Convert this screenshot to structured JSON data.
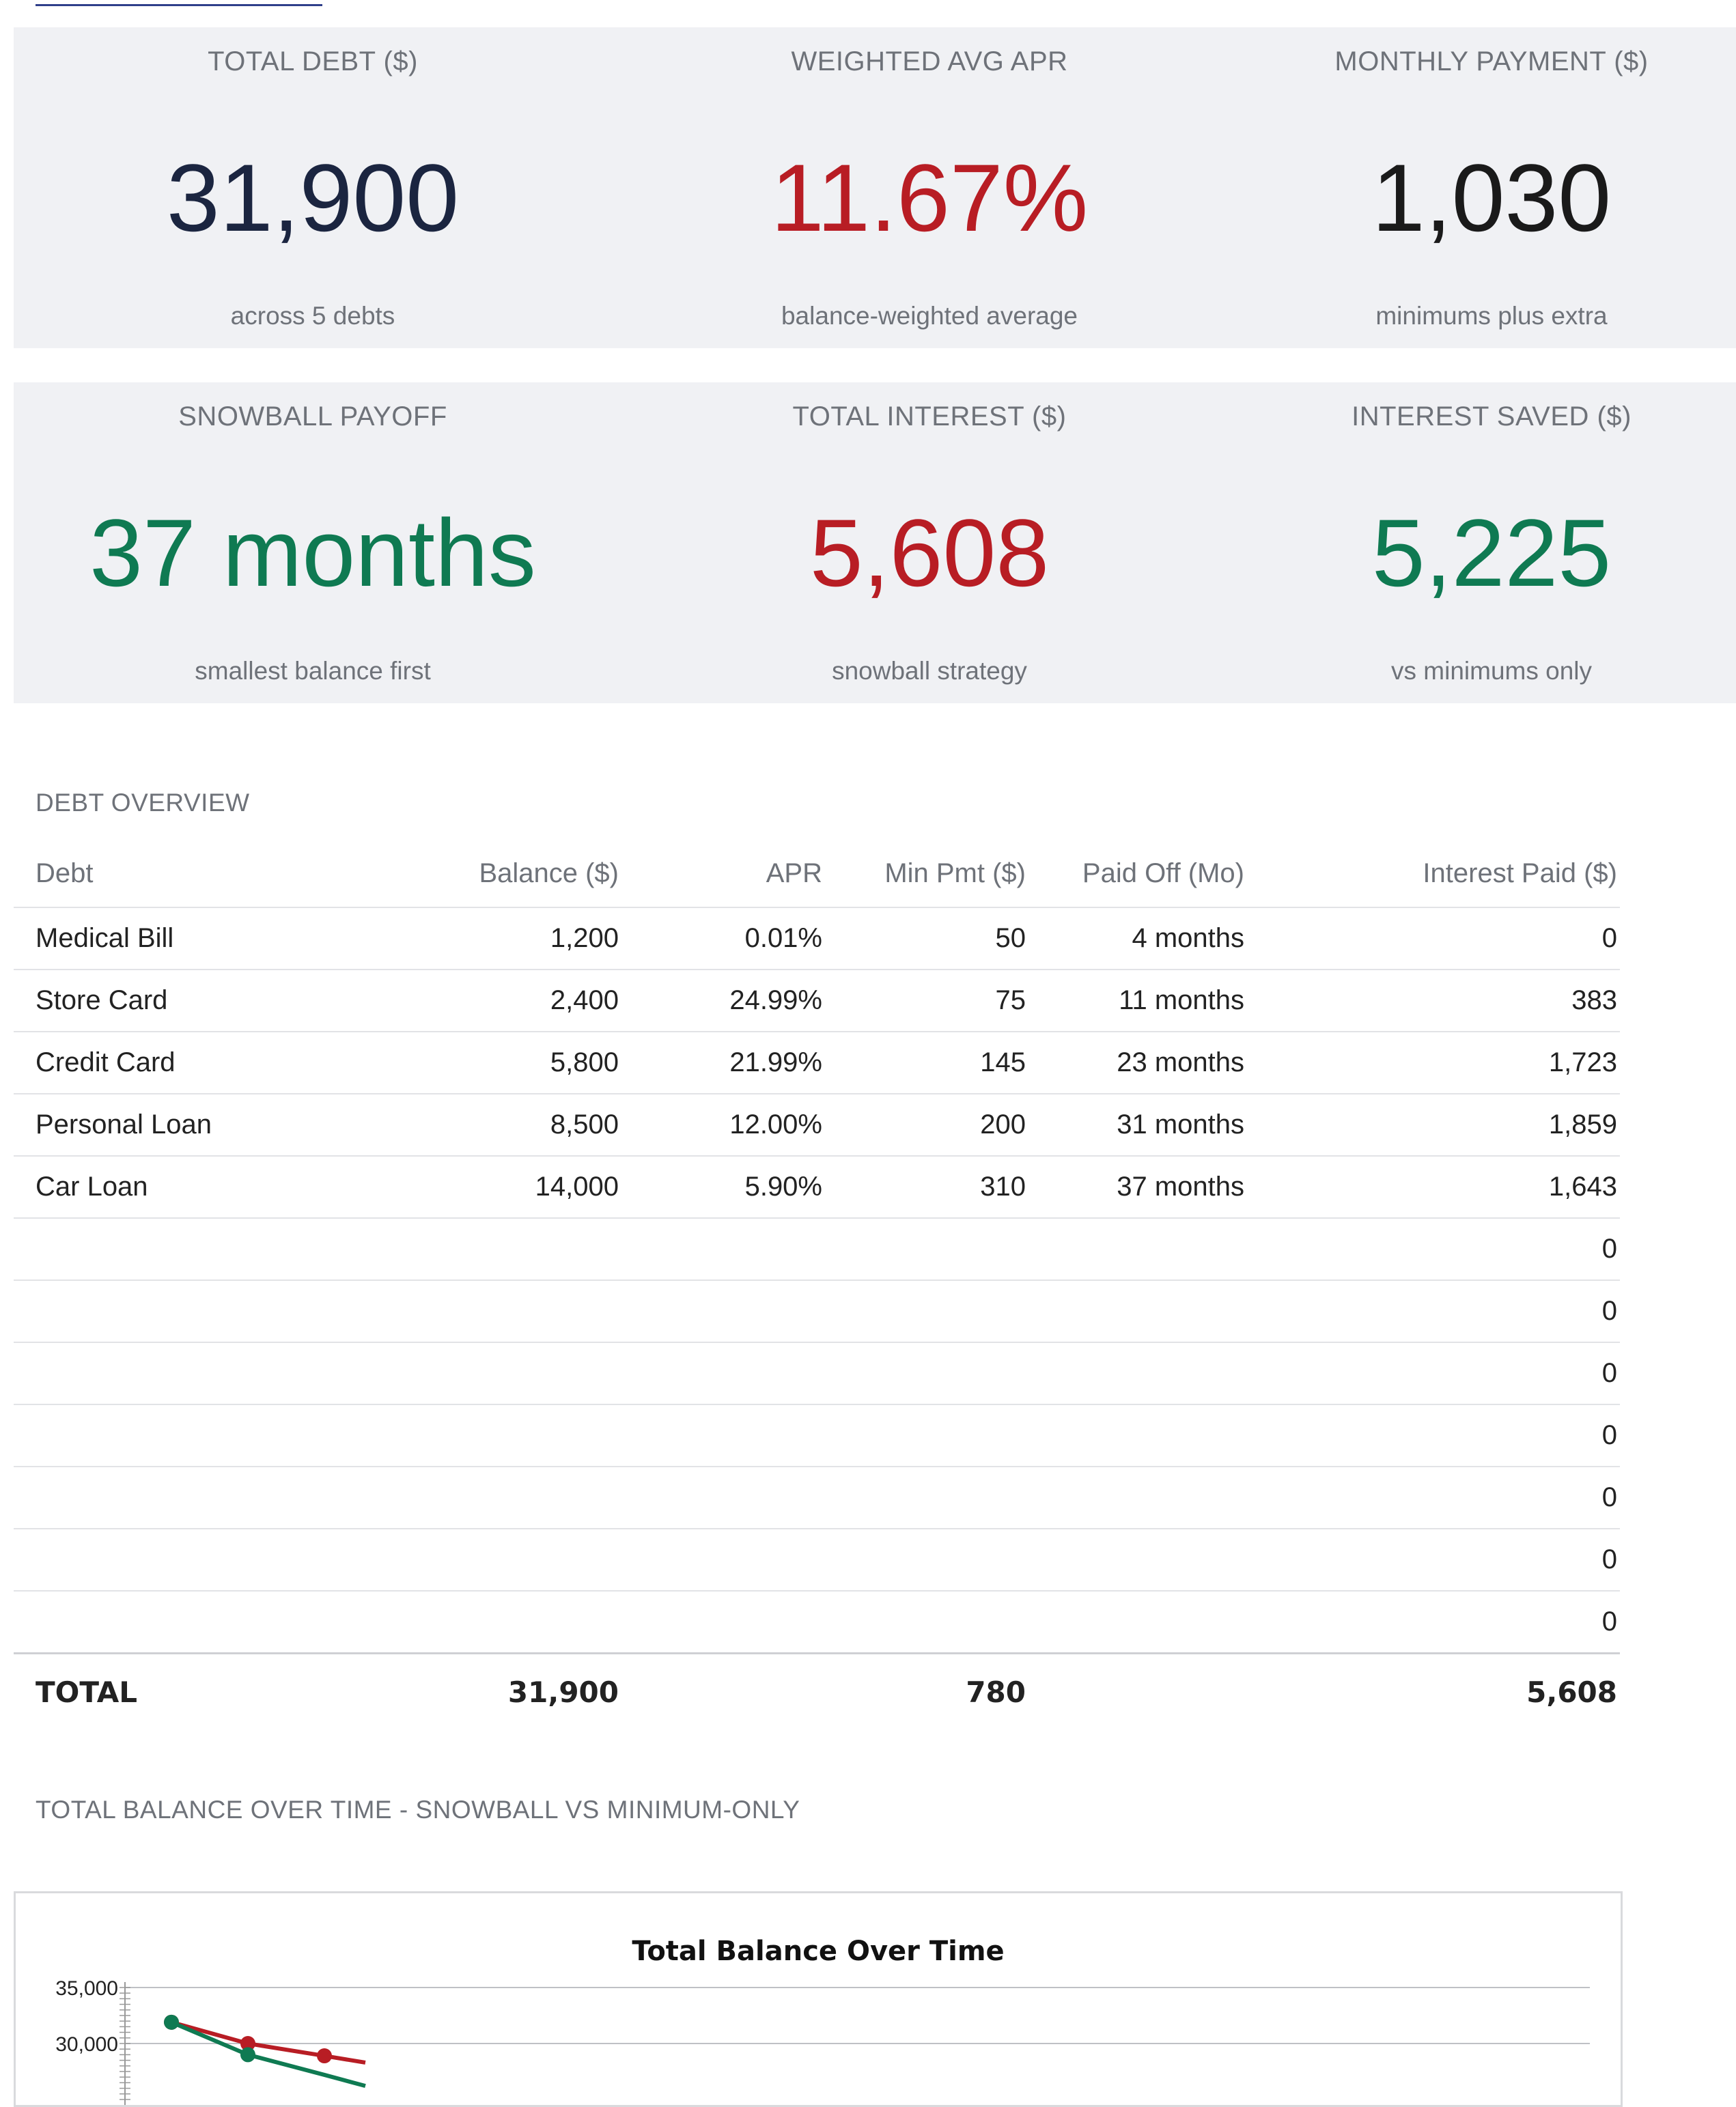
{
  "kpis": {
    "total_debt": {
      "label": "TOTAL DEBT ($)",
      "value": "31,900",
      "sub": "across 5 debts",
      "color": "#1b2540"
    },
    "weighted_apr": {
      "label": "WEIGHTED AVG APR",
      "value": "11.67%",
      "sub": "balance-weighted average",
      "color": "#b81d24"
    },
    "monthly_payment": {
      "label": "MONTHLY PAYMENT ($)",
      "value": "1,030",
      "sub": "minimums plus extra",
      "color": "#1a1a1a"
    },
    "snowball_payoff": {
      "label": "SNOWBALL PAYOFF",
      "value": "37 months",
      "sub": "smallest balance first",
      "color": "#0f7a52"
    },
    "total_interest": {
      "label": "TOTAL INTEREST ($)",
      "value": "5,608",
      "sub": "snowball strategy",
      "color": "#b81d24"
    },
    "interest_saved": {
      "label": "INTEREST SAVED ($)",
      "value": "5,225",
      "sub": "vs minimums only",
      "color": "#0f7a52"
    }
  },
  "debt_overview": {
    "title": "DEBT OVERVIEW",
    "headers": {
      "debt": "Debt",
      "balance": "Balance ($)",
      "apr": "APR",
      "min_pmt": "Min Pmt ($)",
      "paid_off": "Paid Off (Mo)",
      "interest": "Interest Paid ($)"
    },
    "rows": [
      {
        "debt": "Medical Bill",
        "balance": "1,200",
        "apr": "0.01%",
        "min_pmt": "50",
        "paid_off": "4 months",
        "interest": "0"
      },
      {
        "debt": "Store Card",
        "balance": "2,400",
        "apr": "24.99%",
        "min_pmt": "75",
        "paid_off": "11 months",
        "interest": "383"
      },
      {
        "debt": "Credit Card",
        "balance": "5,800",
        "apr": "21.99%",
        "min_pmt": "145",
        "paid_off": "23 months",
        "interest": "1,723"
      },
      {
        "debt": "Personal Loan",
        "balance": "8,500",
        "apr": "12.00%",
        "min_pmt": "200",
        "paid_off": "31 months",
        "interest": "1,859"
      },
      {
        "debt": "Car Loan",
        "balance": "14,000",
        "apr": "5.90%",
        "min_pmt": "310",
        "paid_off": "37 months",
        "interest": "1,643"
      },
      {
        "debt": "",
        "balance": "",
        "apr": "",
        "min_pmt": "",
        "paid_off": "",
        "interest": "0"
      },
      {
        "debt": "",
        "balance": "",
        "apr": "",
        "min_pmt": "",
        "paid_off": "",
        "interest": "0"
      },
      {
        "debt": "",
        "balance": "",
        "apr": "",
        "min_pmt": "",
        "paid_off": "",
        "interest": "0"
      },
      {
        "debt": "",
        "balance": "",
        "apr": "",
        "min_pmt": "",
        "paid_off": "",
        "interest": "0"
      },
      {
        "debt": "",
        "balance": "",
        "apr": "",
        "min_pmt": "",
        "paid_off": "",
        "interest": "0"
      },
      {
        "debt": "",
        "balance": "",
        "apr": "",
        "min_pmt": "",
        "paid_off": "",
        "interest": "0"
      },
      {
        "debt": "",
        "balance": "",
        "apr": "",
        "min_pmt": "",
        "paid_off": "",
        "interest": "0"
      }
    ],
    "total": {
      "label": "TOTAL",
      "balance": "31,900",
      "min_pmt": "780",
      "interest": "5,608"
    }
  },
  "balance_section": {
    "title": "TOTAL BALANCE OVER TIME - SNOWBALL VS MINIMUM-ONLY"
  },
  "chart_data": {
    "type": "line",
    "title": "Total Balance Over Time",
    "y_ticks": [
      "35,000",
      "30,000"
    ],
    "ylim": [
      0,
      35000
    ],
    "x": [
      0,
      1,
      2
    ],
    "series": [
      {
        "color": "#b81d24",
        "values": [
          31900,
          30000,
          28900
        ]
      },
      {
        "color": "#0f7a52",
        "values": [
          31900,
          29000,
          27200
        ]
      }
    ]
  }
}
